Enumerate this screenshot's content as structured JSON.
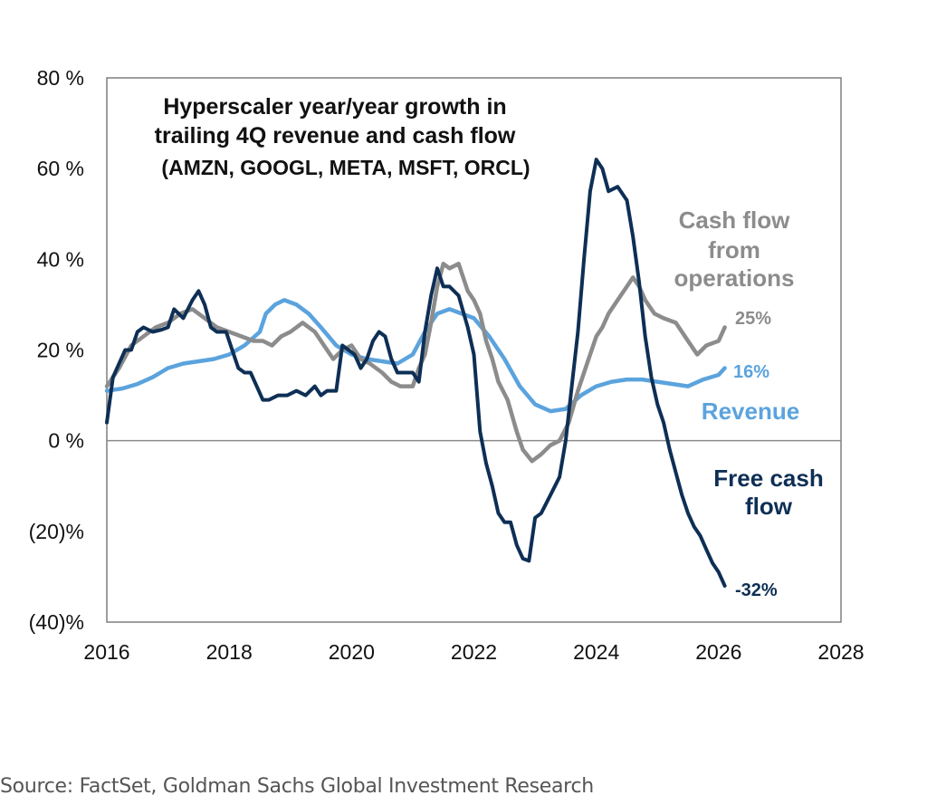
{
  "chart_data": {
    "type": "line",
    "title_lines": [
      "Hyperscaler year/year growth in",
      "trailing  4Q revenue and cash flow"
    ],
    "subtitle": "(AMZN,  GOOGL, META, MSFT, ORCL)",
    "xlabel": "",
    "ylabel": "",
    "xlim": [
      2016,
      2028
    ],
    "ylim": [
      -40,
      80
    ],
    "x_ticks": [
      2016,
      2018,
      2020,
      2022,
      2024,
      2026,
      2028
    ],
    "x_tick_labels": [
      "2016",
      "2018",
      "2020",
      "2022",
      "2024",
      "2026",
      "2028"
    ],
    "y_ticks": [
      80,
      60,
      40,
      20,
      0,
      -20,
      -40
    ],
    "y_tick_labels": [
      "80 %",
      "60 %",
      "40 %",
      "20 %",
      "0 %",
      "(20)%",
      "(40)%"
    ],
    "grid": false,
    "zero_line": true,
    "series": [
      {
        "name": "Revenue",
        "color": "#5ba3dd",
        "end_label": "16%",
        "points": [
          [
            2016.0,
            11
          ],
          [
            2016.25,
            11.5
          ],
          [
            2016.5,
            12.5
          ],
          [
            2016.75,
            14
          ],
          [
            2017.0,
            16
          ],
          [
            2017.25,
            17
          ],
          [
            2017.5,
            17.5
          ],
          [
            2017.75,
            18
          ],
          [
            2018.0,
            19
          ],
          [
            2018.25,
            21
          ],
          [
            2018.5,
            24
          ],
          [
            2018.6,
            28
          ],
          [
            2018.75,
            30
          ],
          [
            2018.9,
            31
          ],
          [
            2019.1,
            30
          ],
          [
            2019.3,
            28
          ],
          [
            2019.5,
            25
          ],
          [
            2019.75,
            21
          ],
          [
            2020.0,
            19
          ],
          [
            2020.25,
            18
          ],
          [
            2020.5,
            17.5
          ],
          [
            2020.75,
            17
          ],
          [
            2021.0,
            19
          ],
          [
            2021.2,
            24
          ],
          [
            2021.4,
            28
          ],
          [
            2021.6,
            29
          ],
          [
            2021.8,
            28
          ],
          [
            2022.0,
            27
          ],
          [
            2022.25,
            23
          ],
          [
            2022.5,
            18
          ],
          [
            2022.75,
            12
          ],
          [
            2023.0,
            8
          ],
          [
            2023.25,
            6.5
          ],
          [
            2023.5,
            7
          ],
          [
            2023.75,
            10
          ],
          [
            2024.0,
            12
          ],
          [
            2024.25,
            13
          ],
          [
            2024.5,
            13.5
          ],
          [
            2024.75,
            13.5
          ],
          [
            2025.0,
            13
          ],
          [
            2025.25,
            12.5
          ],
          [
            2025.5,
            12
          ],
          [
            2025.75,
            13.5
          ],
          [
            2026.0,
            14.5
          ],
          [
            2026.1,
            16
          ]
        ]
      },
      {
        "name": "Cash flow from operations",
        "label_lines": [
          "Cash flow",
          "from",
          "operations"
        ],
        "color": "#8c8c8c",
        "end_label": "25%",
        "points": [
          [
            2016.0,
            12
          ],
          [
            2016.2,
            16
          ],
          [
            2016.4,
            21
          ],
          [
            2016.6,
            23
          ],
          [
            2016.8,
            25
          ],
          [
            2017.0,
            26
          ],
          [
            2017.2,
            28
          ],
          [
            2017.4,
            29
          ],
          [
            2017.6,
            27
          ],
          [
            2017.8,
            25
          ],
          [
            2018.0,
            24
          ],
          [
            2018.2,
            23
          ],
          [
            2018.4,
            22
          ],
          [
            2018.55,
            22
          ],
          [
            2018.7,
            21
          ],
          [
            2018.85,
            23
          ],
          [
            2019.0,
            24
          ],
          [
            2019.2,
            26
          ],
          [
            2019.4,
            24
          ],
          [
            2019.55,
            21
          ],
          [
            2019.7,
            18
          ],
          [
            2019.85,
            20
          ],
          [
            2020.0,
            21
          ],
          [
            2020.15,
            18
          ],
          [
            2020.3,
            17
          ],
          [
            2020.5,
            15
          ],
          [
            2020.65,
            13
          ],
          [
            2020.8,
            12
          ],
          [
            2021.0,
            12
          ],
          [
            2021.1,
            16
          ],
          [
            2021.2,
            19
          ],
          [
            2021.3,
            26
          ],
          [
            2021.4,
            34
          ],
          [
            2021.5,
            39
          ],
          [
            2021.6,
            38
          ],
          [
            2021.75,
            39
          ],
          [
            2021.9,
            33
          ],
          [
            2022.0,
            31
          ],
          [
            2022.1,
            28
          ],
          [
            2022.2,
            22
          ],
          [
            2022.3,
            18
          ],
          [
            2022.4,
            13
          ],
          [
            2022.55,
            9
          ],
          [
            2022.7,
            2
          ],
          [
            2022.8,
            -2
          ],
          [
            2022.95,
            -4.5
          ],
          [
            2023.1,
            -3
          ],
          [
            2023.25,
            -1
          ],
          [
            2023.4,
            0
          ],
          [
            2023.55,
            4
          ],
          [
            2023.7,
            11
          ],
          [
            2023.85,
            17
          ],
          [
            2024.0,
            23
          ],
          [
            2024.1,
            25
          ],
          [
            2024.2,
            28
          ],
          [
            2024.35,
            31
          ],
          [
            2024.5,
            34
          ],
          [
            2024.6,
            36
          ],
          [
            2024.7,
            34
          ],
          [
            2024.8,
            31
          ],
          [
            2024.95,
            28
          ],
          [
            2025.1,
            27
          ],
          [
            2025.3,
            26
          ],
          [
            2025.5,
            22
          ],
          [
            2025.65,
            19
          ],
          [
            2025.8,
            21
          ],
          [
            2026.0,
            22
          ],
          [
            2026.1,
            25
          ]
        ]
      },
      {
        "name": "Free cash flow",
        "label_lines": [
          "Free cash",
          "flow"
        ],
        "color": "#0e2f55",
        "end_label": "-32%",
        "points": [
          [
            2016.0,
            4
          ],
          [
            2016.1,
            14
          ],
          [
            2016.2,
            17
          ],
          [
            2016.3,
            20
          ],
          [
            2016.4,
            20
          ],
          [
            2016.5,
            24
          ],
          [
            2016.6,
            25
          ],
          [
            2016.75,
            24
          ],
          [
            2016.9,
            24.5
          ],
          [
            2017.0,
            25
          ],
          [
            2017.1,
            29
          ],
          [
            2017.25,
            27
          ],
          [
            2017.4,
            31
          ],
          [
            2017.5,
            33
          ],
          [
            2017.6,
            30
          ],
          [
            2017.7,
            25
          ],
          [
            2017.8,
            24
          ],
          [
            2017.95,
            24
          ],
          [
            2018.05,
            20
          ],
          [
            2018.15,
            16
          ],
          [
            2018.25,
            15
          ],
          [
            2018.35,
            15
          ],
          [
            2018.45,
            12
          ],
          [
            2018.55,
            9
          ],
          [
            2018.65,
            9
          ],
          [
            2018.8,
            10
          ],
          [
            2018.95,
            10
          ],
          [
            2019.1,
            11
          ],
          [
            2019.25,
            10
          ],
          [
            2019.4,
            12
          ],
          [
            2019.5,
            10
          ],
          [
            2019.6,
            11
          ],
          [
            2019.75,
            11
          ],
          [
            2019.85,
            21
          ],
          [
            2019.95,
            20
          ],
          [
            2020.05,
            19
          ],
          [
            2020.15,
            16
          ],
          [
            2020.25,
            18
          ],
          [
            2020.35,
            22
          ],
          [
            2020.45,
            24
          ],
          [
            2020.55,
            23
          ],
          [
            2020.65,
            18
          ],
          [
            2020.75,
            15
          ],
          [
            2020.85,
            15
          ],
          [
            2021.0,
            15
          ],
          [
            2021.1,
            13
          ],
          [
            2021.2,
            24
          ],
          [
            2021.3,
            32
          ],
          [
            2021.4,
            38
          ],
          [
            2021.5,
            34
          ],
          [
            2021.6,
            34
          ],
          [
            2021.75,
            32
          ],
          [
            2021.9,
            25
          ],
          [
            2022.0,
            19
          ],
          [
            2022.1,
            2
          ],
          [
            2022.2,
            -5
          ],
          [
            2022.3,
            -10
          ],
          [
            2022.4,
            -16
          ],
          [
            2022.5,
            -18
          ],
          [
            2022.6,
            -18
          ],
          [
            2022.7,
            -23
          ],
          [
            2022.8,
            -26
          ],
          [
            2022.9,
            -26.5
          ],
          [
            2023.0,
            -17
          ],
          [
            2023.1,
            -16
          ],
          [
            2023.25,
            -12
          ],
          [
            2023.4,
            -8
          ],
          [
            2023.5,
            0
          ],
          [
            2023.6,
            12
          ],
          [
            2023.7,
            24
          ],
          [
            2023.8,
            40
          ],
          [
            2023.9,
            55
          ],
          [
            2024.0,
            62
          ],
          [
            2024.1,
            60
          ],
          [
            2024.2,
            55
          ],
          [
            2024.35,
            56
          ],
          [
            2024.5,
            53
          ],
          [
            2024.6,
            45
          ],
          [
            2024.7,
            35
          ],
          [
            2024.8,
            23
          ],
          [
            2024.9,
            14
          ],
          [
            2025.0,
            8
          ],
          [
            2025.1,
            4
          ],
          [
            2025.2,
            -2
          ],
          [
            2025.3,
            -7
          ],
          [
            2025.4,
            -12
          ],
          [
            2025.5,
            -16
          ],
          [
            2025.6,
            -19
          ],
          [
            2025.7,
            -21
          ],
          [
            2025.8,
            -24
          ],
          [
            2025.9,
            -27
          ],
          [
            2026.0,
            -29
          ],
          [
            2026.1,
            -32
          ]
        ]
      }
    ]
  },
  "source": "Source: FactSet, Goldman Sachs Global Investment Research"
}
